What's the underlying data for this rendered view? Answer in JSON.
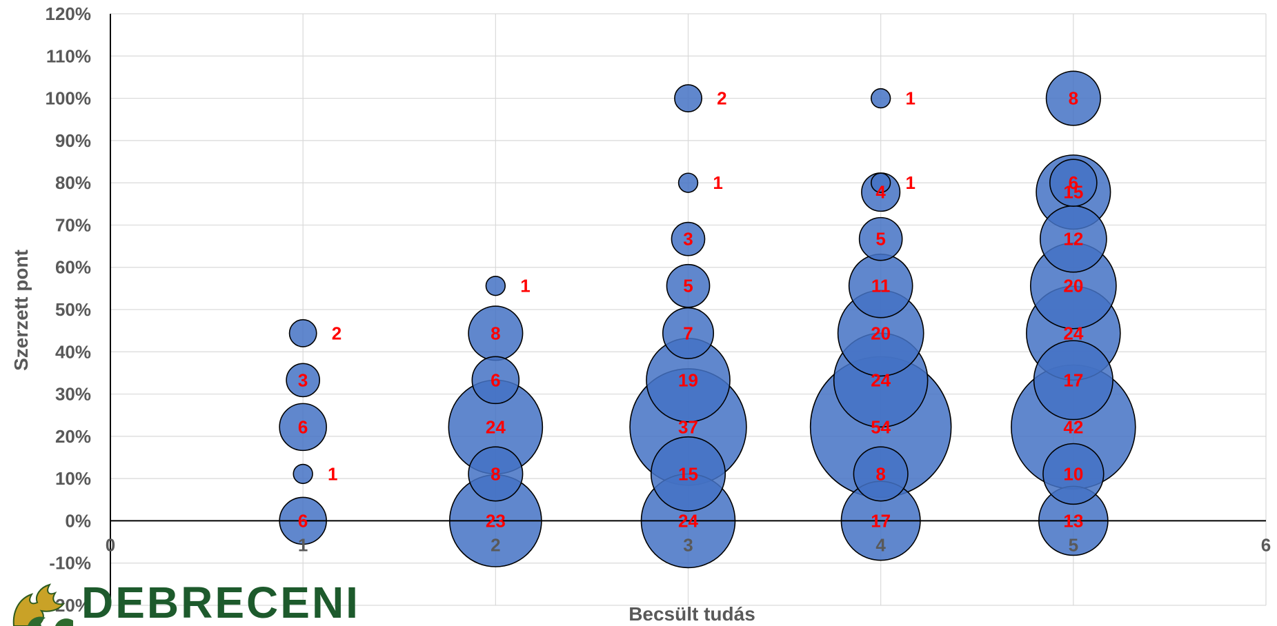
{
  "chart_data": {
    "type": "scatter",
    "subtype": "bubble",
    "title": "",
    "xlabel": "Becsült tudás",
    "ylabel": "Szerzett pont",
    "xlim": [
      0,
      6
    ],
    "ylim": [
      -0.2,
      1.2
    ],
    "x_ticks": [
      "0",
      "1",
      "2",
      "3",
      "4",
      "5",
      "6"
    ],
    "y_ticks": [
      "-20%",
      "-10%",
      "0%",
      "10%",
      "20%",
      "30%",
      "40%",
      "50%",
      "60%",
      "70%",
      "80%",
      "90%",
      "100%",
      "110%",
      "120%"
    ],
    "grid": true,
    "legend": "none",
    "bubble_color": "#4472c4",
    "label_color": "#ff0000",
    "points": [
      {
        "x": 1,
        "y": 0.0,
        "size": 6
      },
      {
        "x": 1,
        "y": 0.111,
        "size": 1
      },
      {
        "x": 1,
        "y": 0.222,
        "size": 6
      },
      {
        "x": 1,
        "y": 0.333,
        "size": 3
      },
      {
        "x": 1,
        "y": 0.444,
        "size": 2
      },
      {
        "x": 2,
        "y": 0.0,
        "size": 23
      },
      {
        "x": 2,
        "y": 0.111,
        "size": 8
      },
      {
        "x": 2,
        "y": 0.222,
        "size": 24
      },
      {
        "x": 2,
        "y": 0.333,
        "size": 6
      },
      {
        "x": 2,
        "y": 0.444,
        "size": 8
      },
      {
        "x": 2,
        "y": 0.556,
        "size": 1
      },
      {
        "x": 3,
        "y": 0.0,
        "size": 24
      },
      {
        "x": 3,
        "y": 0.111,
        "size": 15
      },
      {
        "x": 3,
        "y": 0.222,
        "size": 37
      },
      {
        "x": 3,
        "y": 0.333,
        "size": 19
      },
      {
        "x": 3,
        "y": 0.444,
        "size": 7
      },
      {
        "x": 3,
        "y": 0.556,
        "size": 5
      },
      {
        "x": 3,
        "y": 0.667,
        "size": 3
      },
      {
        "x": 3,
        "y": 0.8,
        "size": 1
      },
      {
        "x": 3,
        "y": 1.0,
        "size": 2
      },
      {
        "x": 4,
        "y": 0.0,
        "size": 17
      },
      {
        "x": 4,
        "y": 0.111,
        "size": 8
      },
      {
        "x": 4,
        "y": 0.222,
        "size": 54
      },
      {
        "x": 4,
        "y": 0.333,
        "size": 24
      },
      {
        "x": 4,
        "y": 0.444,
        "size": 20
      },
      {
        "x": 4,
        "y": 0.556,
        "size": 11
      },
      {
        "x": 4,
        "y": 0.667,
        "size": 5
      },
      {
        "x": 4,
        "y": 0.778,
        "size": 4
      },
      {
        "x": 4,
        "y": 0.8,
        "size": 1
      },
      {
        "x": 4,
        "y": 1.0,
        "size": 1
      },
      {
        "x": 5,
        "y": 0.0,
        "size": 13
      },
      {
        "x": 5,
        "y": 0.111,
        "size": 10
      },
      {
        "x": 5,
        "y": 0.222,
        "size": 42
      },
      {
        "x": 5,
        "y": 0.333,
        "size": 17
      },
      {
        "x": 5,
        "y": 0.444,
        "size": 24
      },
      {
        "x": 5,
        "y": 0.556,
        "size": 20
      },
      {
        "x": 5,
        "y": 0.667,
        "size": 12
      },
      {
        "x": 5,
        "y": 0.778,
        "size": 15
      },
      {
        "x": 5,
        "y": 0.8,
        "size": 6
      },
      {
        "x": 5,
        "y": 1.0,
        "size": 8
      }
    ]
  },
  "logo": {
    "text": "DEBRECENI",
    "color": "#1d5a2c",
    "icon": "griffin-crest-icon"
  }
}
